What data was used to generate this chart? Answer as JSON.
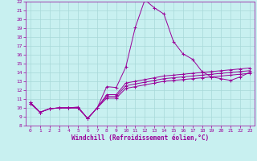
{
  "xlabel": "Windchill (Refroidissement éolien,°C)",
  "xlim": [
    -0.5,
    23.5
  ],
  "ylim": [
    8,
    22
  ],
  "xticks": [
    0,
    1,
    2,
    3,
    4,
    5,
    6,
    7,
    8,
    9,
    10,
    11,
    12,
    13,
    14,
    15,
    16,
    17,
    18,
    19,
    20,
    21,
    22,
    23
  ],
  "yticks": [
    8,
    9,
    10,
    11,
    12,
    13,
    14,
    15,
    16,
    17,
    18,
    19,
    20,
    21,
    22
  ],
  "line_color": "#990099",
  "bg_color": "#c8f0f0",
  "grid_color": "#a8d8d8",
  "lines": [
    [
      10.6,
      9.5,
      9.9,
      10.0,
      10.0,
      10.1,
      8.8,
      10.0,
      12.4,
      12.3,
      14.6,
      19.1,
      22.2,
      21.3,
      20.6,
      17.5,
      16.1,
      15.5,
      14.1,
      13.5,
      13.3,
      13.1,
      13.5,
      14.0
    ],
    [
      10.6,
      9.5,
      9.9,
      10.0,
      10.0,
      10.0,
      8.8,
      10.0,
      11.5,
      11.5,
      12.8,
      13.0,
      13.2,
      13.4,
      13.6,
      13.7,
      13.8,
      13.9,
      14.0,
      14.1,
      14.2,
      14.3,
      14.4,
      14.5
    ],
    [
      10.5,
      9.5,
      9.9,
      10.0,
      10.0,
      10.0,
      8.8,
      10.0,
      11.3,
      11.3,
      12.5,
      12.7,
      12.9,
      13.1,
      13.3,
      13.4,
      13.5,
      13.6,
      13.7,
      13.8,
      13.9,
      14.0,
      14.1,
      14.2
    ],
    [
      10.5,
      9.5,
      9.9,
      10.0,
      10.0,
      10.0,
      8.8,
      10.0,
      11.1,
      11.1,
      12.2,
      12.4,
      12.6,
      12.8,
      13.0,
      13.1,
      13.2,
      13.3,
      13.4,
      13.5,
      13.6,
      13.7,
      13.8,
      13.9
    ]
  ]
}
